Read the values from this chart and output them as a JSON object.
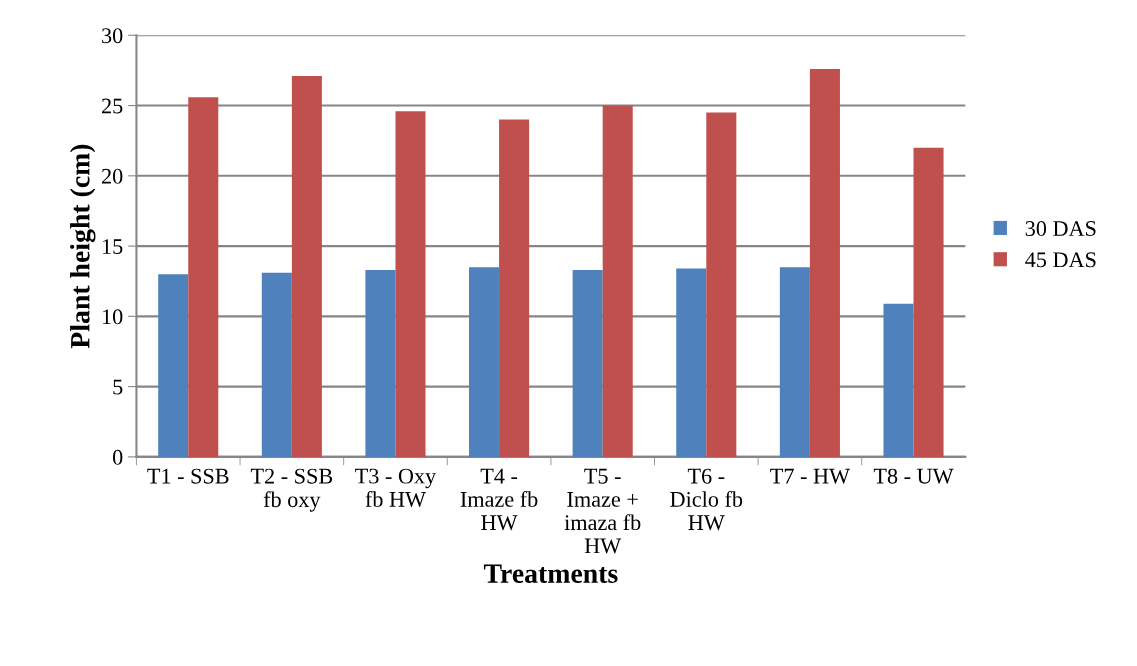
{
  "chart_data": {
    "type": "bar",
    "xlabel": "Treatments",
    "ylabel": "Plant height (cm)",
    "categories": [
      "T1 - SSB",
      "T2 - SSB fb oxy",
      "T3 - Oxy fb HW",
      "T4 - Imaze fb HW",
      "T5 - Imaze + imaza fb HW",
      "T6 - Diclo fb HW",
      "T7 - HW",
      "T8 - UW"
    ],
    "series": [
      {
        "name": "30 DAS",
        "color": "#4f81bd",
        "values": [
          13.0,
          13.1,
          13.3,
          13.5,
          13.3,
          13.4,
          13.5,
          10.9
        ]
      },
      {
        "name": "45 DAS",
        "color": "#c0504d",
        "values": [
          25.6,
          27.1,
          24.6,
          24.0,
          25.0,
          24.5,
          27.6,
          22.0
        ]
      }
    ],
    "ylim": [
      0,
      30
    ],
    "yticks": [
      0,
      5,
      10,
      15,
      20,
      25,
      30
    ],
    "grid": "y",
    "legend": "right"
  }
}
